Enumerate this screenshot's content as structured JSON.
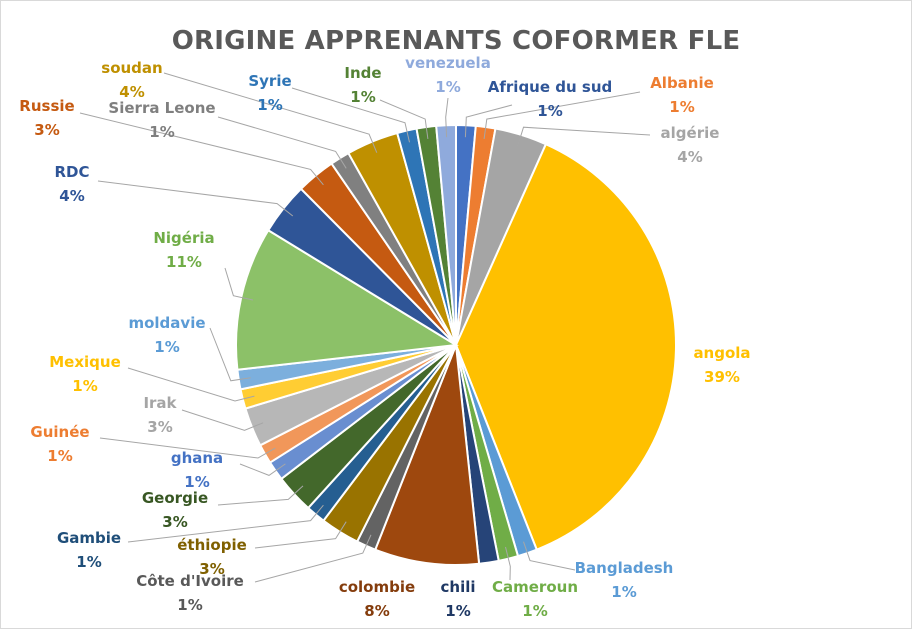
{
  "chart_data": {
    "type": "pie",
    "title": "ORIGINE APPRENANTS COFORMER FLE",
    "slices": [
      {
        "label": "Afrique du sud",
        "pct_label": "1%",
        "value": 1.5,
        "color": "#4472c4"
      },
      {
        "label": "Albanie",
        "pct_label": "1%",
        "value": 1.5,
        "color": "#ed7d31"
      },
      {
        "label": "algérie",
        "pct_label": "4%",
        "value": 4,
        "color": "#a5a5a5"
      },
      {
        "label": "angola",
        "pct_label": "39%",
        "value": 39,
        "color": "#ffc000"
      },
      {
        "label": "Bangladesh",
        "pct_label": "1%",
        "value": 1.5,
        "color": "#5b9bd5"
      },
      {
        "label": "Cameroun",
        "pct_label": "1%",
        "value": 1.5,
        "color": "#70ad47"
      },
      {
        "label": "chili",
        "pct_label": "1%",
        "value": 1.5,
        "color": "#264478"
      },
      {
        "label": "colombie",
        "pct_label": "8%",
        "value": 8,
        "color": "#9e480e"
      },
      {
        "label": "Côte d'Ivoire",
        "pct_label": "1%",
        "value": 1.5,
        "color": "#636363"
      },
      {
        "label": "éthiopie",
        "pct_label": "3%",
        "value": 3,
        "color": "#997300"
      },
      {
        "label": "Gambie",
        "pct_label": "1%",
        "value": 1.5,
        "color": "#255e91"
      },
      {
        "label": "Georgie",
        "pct_label": "3%",
        "value": 3,
        "color": "#43682b"
      },
      {
        "label": "ghana",
        "pct_label": "1%",
        "value": 1.5,
        "color": "#698ed0"
      },
      {
        "label": "Guinée",
        "pct_label": "1%",
        "value": 1.5,
        "color": "#f1975a"
      },
      {
        "label": "Irak",
        "pct_label": "3%",
        "value": 3,
        "color": "#b7b7b7"
      },
      {
        "label": "Mexique",
        "pct_label": "1%",
        "value": 1.5,
        "color": "#ffcd33"
      },
      {
        "label": "moldavie",
        "pct_label": "1%",
        "value": 1.5,
        "color": "#7cafdd"
      },
      {
        "label": "Nigéria",
        "pct_label": "11%",
        "value": 11,
        "color": "#8cc168"
      },
      {
        "label": "RDC",
        "pct_label": "4%",
        "value": 4,
        "color": "#2f5597"
      },
      {
        "label": "Russie",
        "pct_label": "3%",
        "value": 3,
        "color": "#c55a11"
      },
      {
        "label": "Sierra Leone",
        "pct_label": "1%",
        "value": 1.5,
        "color": "#808080"
      },
      {
        "label": "soudan",
        "pct_label": "4%",
        "value": 4,
        "color": "#bf9000"
      },
      {
        "label": "Syrie",
        "pct_label": "1%",
        "value": 1.5,
        "color": "#2e75b6"
      },
      {
        "label": "Inde",
        "pct_label": "1%",
        "value": 1.5,
        "color": "#548235"
      },
      {
        "label": "venezuela",
        "pct_label": "1%",
        "value": 1.5,
        "color": "#8faadc"
      }
    ]
  }
}
